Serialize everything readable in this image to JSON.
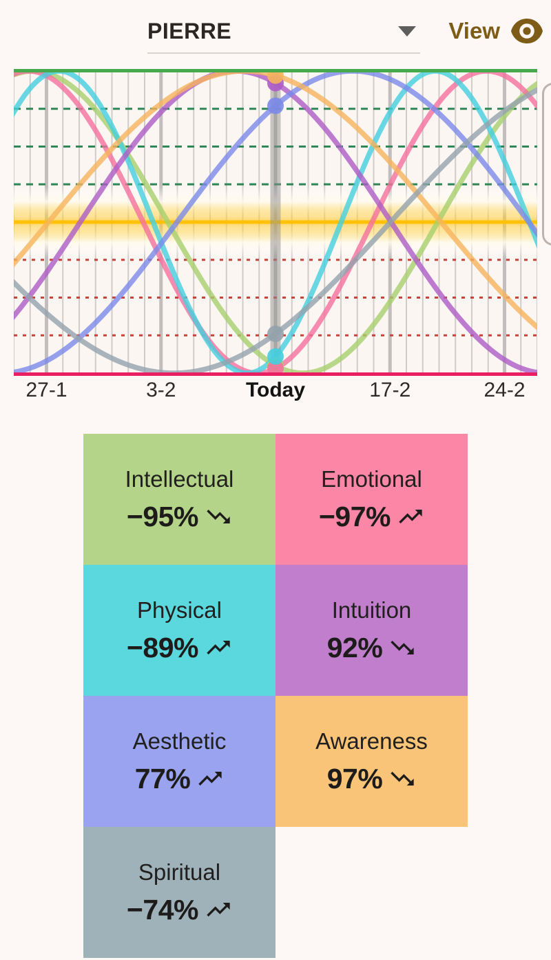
{
  "header": {
    "profile_name": "PIERRE",
    "view_label": "View"
  },
  "chart_data": {
    "type": "line",
    "title": "Biorhythm curves for PIERRE",
    "days_visible": 32,
    "today_center": true,
    "y_range": [
      -100,
      100
    ],
    "grid": {
      "day_lines": true,
      "week_line_every_days": 7,
      "positive_guides_pct": [
        25,
        50,
        75
      ],
      "negative_guides_pct": [
        -25,
        -50,
        -75
      ],
      "center_line_pct": 0
    },
    "x_tick_labels": [
      {
        "day": -14,
        "label": "27-1",
        "bold": false
      },
      {
        "day": -7,
        "label": "3-2",
        "bold": false
      },
      {
        "day": 0,
        "label": "Today",
        "bold": true
      },
      {
        "day": 7,
        "label": "17-2",
        "bold": false
      },
      {
        "day": 14,
        "label": "24-2",
        "bold": false
      }
    ],
    "colors": {
      "top_border": "#47a84c",
      "bottom_border": "#e91e63",
      "center_line": "#ffc107",
      "positive_guide": "#2f8757",
      "negative_guide": "#c8433c",
      "day_grid": "#9a9a9a",
      "today_bar": "#8f8f8f",
      "plot_background": "#fcf6f2"
    },
    "series": [
      {
        "name": "Intellectual",
        "period_days": 33,
        "today_pct": -95,
        "trend": "down",
        "color": "#a6cf6d"
      },
      {
        "name": "Emotional",
        "period_days": 28,
        "today_pct": -97,
        "trend": "up",
        "color": "#f4719d"
      },
      {
        "name": "Physical",
        "period_days": 23,
        "today_pct": -89,
        "trend": "up",
        "color": "#44cfdf"
      },
      {
        "name": "Intuition",
        "period_days": 38,
        "today_pct": 92,
        "trend": "down",
        "color": "#ad5cc6"
      },
      {
        "name": "Aesthetic",
        "period_days": 43,
        "today_pct": 77,
        "trend": "up",
        "color": "#7b89e8"
      },
      {
        "name": "Awareness",
        "period_days": 48,
        "today_pct": 97,
        "trend": "down",
        "color": "#f6b45c"
      },
      {
        "name": "Spiritual",
        "period_days": 53,
        "today_pct": -74,
        "trend": "up",
        "color": "#94a3ac"
      }
    ]
  },
  "cards": [
    {
      "name": "Intellectual",
      "value_label": "−95%",
      "trend": "down",
      "bg": "#b4d489"
    },
    {
      "name": "Emotional",
      "value_label": "−97%",
      "trend": "up",
      "bg": "#fb86a6"
    },
    {
      "name": "Physical",
      "value_label": "−89%",
      "trend": "up",
      "bg": "#5bd7de"
    },
    {
      "name": "Intuition",
      "value_label": "92%",
      "trend": "down",
      "bg": "#c07ecd"
    },
    {
      "name": "Aesthetic",
      "value_label": "77%",
      "trend": "up",
      "bg": "#99a3f0"
    },
    {
      "name": "Awareness",
      "value_label": "97%",
      "trend": "down",
      "bg": "#f9c478"
    },
    {
      "name": "Spiritual",
      "value_label": "−74%",
      "trend": "up",
      "bg": "#9fb1b9"
    }
  ]
}
